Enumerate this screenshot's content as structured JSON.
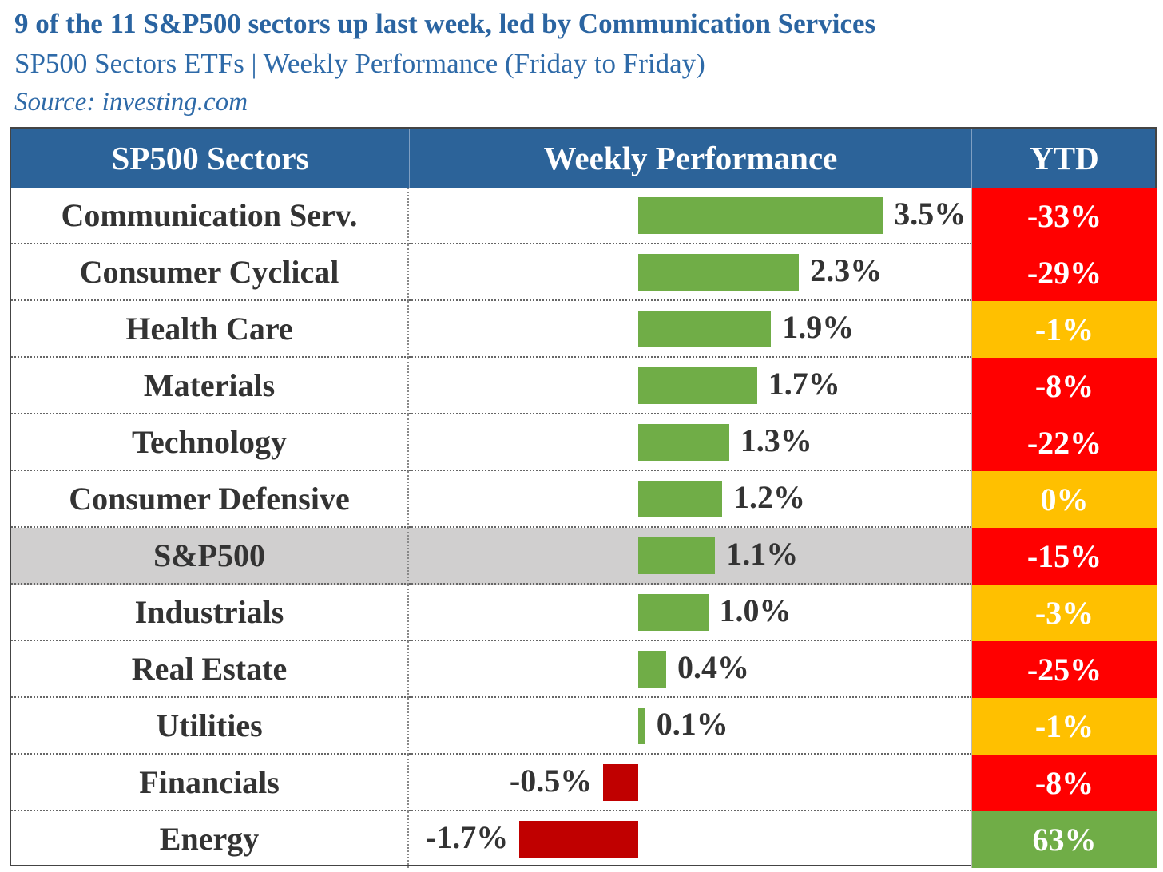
{
  "chart_data": {
    "type": "bar",
    "title": "9 of the 11 S&P500 sectors up last week, led by Communication Services",
    "subtitle": "SP500 Sectors ETFs | Weekly Performance (Friday to Friday)",
    "source": "Source: investing.com",
    "columns": [
      "SP500 Sectors",
      "Weekly Performance",
      "YTD"
    ],
    "categories": [
      "Communication Serv.",
      "Consumer Cyclical",
      "Health Care",
      "Materials",
      "Technology",
      "Consumer Defensive",
      "S&P500",
      "Industrials",
      "Real Estate",
      "Utilities",
      "Financials",
      "Energy"
    ],
    "highlight_category": "S&P500",
    "series": [
      {
        "values": [
          3.5,
          2.3,
          1.9,
          1.7,
          1.3,
          1.2,
          1.1,
          1.0,
          0.4,
          0.1,
          -0.5,
          -1.7
        ]
      }
    ],
    "value_labels": [
      "3.5%",
      "2.3%",
      "1.9%",
      "1.7%",
      "1.3%",
      "1.2%",
      "1.1%",
      "1.0%",
      "0.4%",
      "0.1%",
      "-0.5%",
      "-1.7%"
    ],
    "ytd_values": [
      -33,
      -29,
      -1,
      -8,
      -22,
      0,
      -15,
      -3,
      -25,
      -1,
      -8,
      63
    ],
    "ytd_labels": [
      "-33%",
      "-29%",
      "-1%",
      "-8%",
      "-22%",
      "0%",
      "-15%",
      "-3%",
      "-25%",
      "-1%",
      "-8%",
      "63%"
    ],
    "ytd_colors": [
      "#ff0000",
      "#ff0000",
      "#ffc000",
      "#ff0000",
      "#ff0000",
      "#ffc000",
      "#ff0000",
      "#ffc000",
      "#ff0000",
      "#ffc000",
      "#ff0000",
      "#70ad47"
    ],
    "colors": {
      "positive": "#70ad47",
      "negative": "#c00000",
      "header": "#2c6399",
      "highlight_row": "#d0cfcf"
    }
  }
}
